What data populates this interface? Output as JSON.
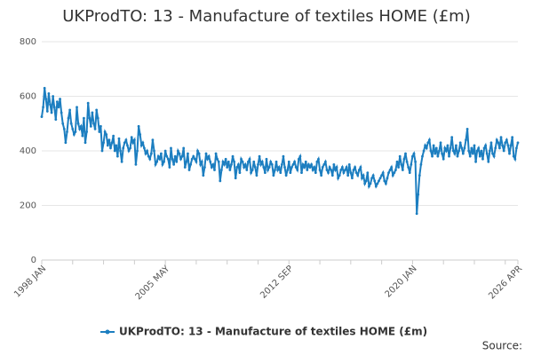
{
  "chart_data": {
    "type": "line",
    "title": "UKProdTO: 13 - Manufacture of textiles HOME (£m)",
    "source": "Source:",
    "ylim": [
      0,
      800
    ],
    "yticks": [
      0,
      200,
      400,
      600,
      800
    ],
    "grid": true,
    "categories": [
      "1998 JAN",
      "1998 FEB",
      "1998 MAR",
      "1998 APR",
      "1998 MAY",
      "1998 JUN",
      "1998 JUL",
      "1998 AUG",
      "1998 SEP",
      "1998 OCT",
      "1998 NOV",
      "1998 DEC",
      "1999 JAN",
      "1999 FEB",
      "1999 MAR",
      "1999 APR",
      "1999 MAY",
      "1999 JUN",
      "1999 JUL",
      "1999 AUG",
      "1999 SEP",
      "1999 OCT",
      "1999 NOV",
      "1999 DEC",
      "2000 JAN",
      "2000 FEB",
      "2000 MAR",
      "2000 APR",
      "2000 MAY",
      "2000 JUN",
      "2000 JUL",
      "2000 AUG",
      "2000 SEP",
      "2000 OCT",
      "2000 NOV",
      "2000 DEC",
      "2001 JAN",
      "2001 FEB",
      "2001 MAR",
      "2001 APR",
      "2001 MAY",
      "2001 JUN",
      "2001 JUL",
      "2001 AUG",
      "2001 SEP",
      "2001 OCT",
      "2001 NOV",
      "2001 DEC",
      "2002 JAN",
      "2002 FEB",
      "2002 MAR",
      "2002 APR",
      "2002 MAY",
      "2002 JUN",
      "2002 JUL",
      "2002 AUG",
      "2002 SEP",
      "2002 OCT",
      "2002 NOV",
      "2002 DEC",
      "2003 JAN",
      "2003 FEB",
      "2003 MAR",
      "2003 APR",
      "2003 MAY",
      "2003 JUN",
      "2003 JUL",
      "2003 AUG",
      "2003 SEP",
      "2003 OCT",
      "2003 NOV",
      "2003 DEC",
      "2004 JAN",
      "2004 FEB",
      "2004 MAR",
      "2004 APR",
      "2004 MAY",
      "2004 JUN",
      "2004 JUL",
      "2004 AUG",
      "2004 SEP",
      "2004 OCT",
      "2004 NOV",
      "2004 DEC",
      "2005 JAN",
      "2005 FEB",
      "2005 MAR",
      "2005 APR",
      "2005 MAY",
      "2005 JUN",
      "2005 JUL",
      "2005 AUG",
      "2005 SEP",
      "2005 OCT",
      "2005 NOV",
      "2005 DEC",
      "2006 JAN",
      "2006 FEB",
      "2006 MAR",
      "2006 APR",
      "2006 MAY",
      "2006 JUN",
      "2006 JUL",
      "2006 AUG",
      "2006 SEP",
      "2006 OCT",
      "2006 NOV",
      "2006 DEC",
      "2007 JAN",
      "2007 FEB",
      "2007 MAR",
      "2007 APR",
      "2007 MAY",
      "2007 JUN",
      "2007 JUL",
      "2007 AUG",
      "2007 SEP",
      "2007 OCT",
      "2007 NOV",
      "2007 DEC",
      "2008 JAN",
      "2008 FEB",
      "2008 MAR",
      "2008 APR",
      "2008 MAY",
      "2008 JUN",
      "2008 JUL",
      "2008 AUG",
      "2008 SEP",
      "2008 OCT",
      "2008 NOV",
      "2008 DEC",
      "2009 JAN",
      "2009 FEB",
      "2009 MAR",
      "2009 APR",
      "2009 MAY",
      "2009 JUN",
      "2009 JUL",
      "2009 AUG",
      "2009 SEP",
      "2009 OCT",
      "2009 NOV",
      "2009 DEC",
      "2010 JAN",
      "2010 FEB",
      "2010 MAR",
      "2010 APR",
      "2010 MAY",
      "2010 JUN",
      "2010 JUL",
      "2010 AUG",
      "2010 SEP",
      "2010 OCT",
      "2010 NOV",
      "2010 DEC",
      "2011 JAN",
      "2011 FEB",
      "2011 MAR",
      "2011 APR",
      "2011 MAY",
      "2011 JUN",
      "2011 JUL",
      "2011 AUG",
      "2011 SEP",
      "2011 OCT",
      "2011 NOV",
      "2011 DEC",
      "2012 JAN",
      "2012 FEB",
      "2012 MAR",
      "2012 APR",
      "2012 MAY",
      "2012 JUN",
      "2012 JUL",
      "2012 AUG",
      "2012 SEP",
      "2012 OCT",
      "2012 NOV",
      "2012 DEC",
      "2013 JAN",
      "2013 FEB",
      "2013 MAR",
      "2013 APR",
      "2013 MAY",
      "2013 JUN",
      "2013 JUL",
      "2013 AUG",
      "2013 SEP",
      "2013 OCT",
      "2013 NOV",
      "2013 DEC",
      "2014 JAN",
      "2014 FEB",
      "2014 MAR",
      "2014 APR",
      "2014 MAY",
      "2014 JUN",
      "2014 JUL",
      "2014 AUG",
      "2014 SEP",
      "2014 OCT",
      "2014 NOV",
      "2014 DEC",
      "2015 JAN",
      "2015 FEB",
      "2015 MAR",
      "2015 APR",
      "2015 MAY",
      "2015 JUN",
      "2015 JUL",
      "2015 AUG",
      "2015 SEP",
      "2015 OCT",
      "2015 NOV",
      "2015 DEC",
      "2016 JAN",
      "2016 FEB",
      "2016 MAR",
      "2016 APR",
      "2016 MAY",
      "2016 JUN",
      "2016 JUL",
      "2016 AUG",
      "2016 SEP",
      "2016 OCT",
      "2016 NOV",
      "2016 DEC",
      "2017 JAN",
      "2017 FEB",
      "2017 MAR",
      "2017 APR",
      "2017 MAY",
      "2017 JUN",
      "2017 JUL",
      "2017 AUG",
      "2017 SEP",
      "2017 OCT",
      "2017 NOV",
      "2017 DEC",
      "2018 JAN",
      "2018 FEB",
      "2018 MAR",
      "2018 APR",
      "2018 MAY",
      "2018 JUN",
      "2018 JUL",
      "2018 AUG",
      "2018 SEP",
      "2018 OCT",
      "2018 NOV",
      "2018 DEC",
      "2019 JAN",
      "2019 FEB",
      "2019 MAR",
      "2019 APR",
      "2019 MAY",
      "2019 JUN",
      "2019 JUL",
      "2019 AUG",
      "2019 SEP",
      "2019 OCT",
      "2019 NOV",
      "2019 DEC",
      "2020 JAN",
      "2020 FEB",
      "2020 MAR",
      "2020 APR",
      "2020 MAY",
      "2020 JUN",
      "2020 JUL",
      "2020 AUG",
      "2020 SEP",
      "2020 OCT",
      "2020 NOV",
      "2020 DEC",
      "2021 JAN",
      "2021 FEB",
      "2021 MAR",
      "2021 APR",
      "2021 MAY",
      "2021 JUN",
      "2021 JUL",
      "2021 AUG",
      "2021 SEP",
      "2021 OCT",
      "2021 NOV",
      "2021 DEC",
      "2022 JAN",
      "2022 FEB",
      "2022 MAR",
      "2022 APR",
      "2022 MAY",
      "2022 JUN",
      "2022 JUL",
      "2022 AUG",
      "2022 SEP",
      "2022 OCT",
      "2022 NOV",
      "2022 DEC",
      "2023 JAN",
      "2023 FEB",
      "2023 MAR",
      "2023 APR",
      "2023 MAY",
      "2023 JUN",
      "2023 JUL",
      "2023 AUG",
      "2023 SEP",
      "2023 OCT",
      "2023 NOV",
      "2023 DEC",
      "2024 JAN",
      "2024 FEB",
      "2024 MAR",
      "2024 APR",
      "2024 MAY",
      "2024 JUN",
      "2024 JUL",
      "2024 AUG",
      "2024 SEP",
      "2024 OCT",
      "2024 NOV",
      "2024 DEC",
      "2025 JAN",
      "2025 FEB",
      "2025 MAR",
      "2025 APR",
      "2025 MAY",
      "2025 JUN",
      "2025 JUL",
      "2025 AUG",
      "2025 SEP",
      "2025 OCT",
      "2025 NOV",
      "2025 DEC",
      "2026 JAN",
      "2026 FEB",
      "2026 MAR",
      "2026 APR"
    ],
    "series": [
      {
        "name": "UKProdTO: 13 - Manufacture of textiles HOME (£m)",
        "color": "#1c7ec0",
        "values": [
          525,
          560,
          630,
          590,
          545,
          610,
          570,
          540,
          600,
          560,
          515,
          580,
          560,
          590,
          540,
          500,
          480,
          430,
          470,
          520,
          550,
          500,
          480,
          460,
          470,
          560,
          500,
          480,
          490,
          455,
          520,
          430,
          470,
          575,
          520,
          490,
          540,
          500,
          480,
          550,
          520,
          470,
          490,
          400,
          430,
          470,
          460,
          420,
          440,
          410,
          430,
          455,
          400,
          420,
          380,
          445,
          400,
          360,
          410,
          430,
          440,
          420,
          400,
          410,
          450,
          430,
          440,
          350,
          400,
          490,
          460,
          420,
          430,
          410,
          390,
          400,
          380,
          370,
          390,
          440,
          400,
          350,
          360,
          380,
          370,
          390,
          350,
          360,
          400,
          380,
          370,
          340,
          410,
          370,
          350,
          380,
          360,
          400,
          390,
          370,
          380,
          410,
          340,
          360,
          390,
          330,
          350,
          370,
          380,
          370,
          360,
          400,
          390,
          350,
          360,
          310,
          340,
          390,
          370,
          380,
          360,
          340,
          350,
          330,
          390,
          370,
          360,
          290,
          330,
          360,
          350,
          370,
          340,
          360,
          330,
          350,
          380,
          360,
          300,
          340,
          350,
          320,
          370,
          360,
          340,
          350,
          330,
          360,
          370,
          320,
          330,
          360,
          340,
          310,
          350,
          380,
          350,
          360,
          340,
          320,
          370,
          330,
          340,
          360,
          350,
          310,
          330,
          360,
          330,
          340,
          320,
          350,
          380,
          340,
          310,
          330,
          360,
          320,
          340,
          350,
          360,
          340,
          330,
          370,
          380,
          320,
          350,
          340,
          360,
          330,
          350,
          340,
          350,
          330,
          340,
          320,
          360,
          370,
          330,
          310,
          340,
          350,
          360,
          330,
          320,
          340,
          330,
          310,
          350,
          330,
          340,
          300,
          310,
          330,
          340,
          320,
          330,
          340,
          310,
          350,
          320,
          300,
          330,
          340,
          320,
          310,
          330,
          340,
          300,
          310,
          280,
          290,
          320,
          270,
          280,
          300,
          310,
          290,
          270,
          280,
          290,
          300,
          310,
          320,
          290,
          280,
          300,
          320,
          330,
          340,
          310,
          320,
          330,
          360,
          340,
          380,
          350,
          330,
          370,
          390,
          360,
          340,
          320,
          350,
          380,
          390,
          360,
          170,
          240,
          310,
          350,
          380,
          400,
          420,
          410,
          430,
          440,
          400,
          380,
          420,
          390,
          410,
          380,
          400,
          430,
          390,
          370,
          410,
          400,
          420,
          380,
          410,
          450,
          400,
          390,
          420,
          380,
          400,
          430,
          410,
          390,
          410,
          440,
          480,
          400,
          380,
          410,
          390,
          420,
          360,
          400,
          410,
          380,
          400,
          370,
          410,
          420,
          390,
          360,
          400,
          430,
          390,
          380,
          410,
          440,
          430,
          410,
          450,
          420,
          400,
          430,
          440,
          420,
          390,
          420,
          450,
          380,
          370,
          410,
          430
        ]
      }
    ]
  }
}
